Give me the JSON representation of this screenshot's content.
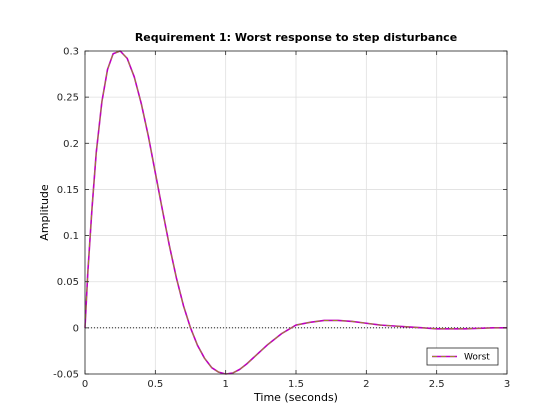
{
  "chart_data": {
    "type": "line",
    "title": "Requirement 1: Worst response to step disturbance",
    "xlabel": "Time (seconds)",
    "ylabel": "Amplitude",
    "xlim": [
      0,
      3
    ],
    "ylim": [
      -0.05,
      0.3
    ],
    "xticks": [
      0,
      0.5,
      1,
      1.5,
      2,
      2.5,
      3
    ],
    "xtick_labels": [
      "0",
      "0.5",
      "1",
      "1.5",
      "2",
      "2.5",
      "3"
    ],
    "yticks": [
      -0.05,
      0,
      0.05,
      0.1,
      0.15,
      0.2,
      0.25,
      0.3
    ],
    "ytick_labels": [
      "-0.05",
      "0",
      "0.05",
      "0.1",
      "0.15",
      "0.2",
      "0.25",
      "0.3"
    ],
    "grid": true,
    "legend": {
      "location": "bottom-right",
      "entries": [
        "Worst"
      ]
    },
    "reference_line": {
      "y": 0,
      "style": "dotted",
      "color": "#000000"
    },
    "series": [
      {
        "name": "Worst",
        "color": "#bf00bf",
        "dash_color": "#9a8a2a",
        "style": "dashed",
        "x": [
          0,
          0.02,
          0.05,
          0.08,
          0.12,
          0.16,
          0.2,
          0.25,
          0.3,
          0.35,
          0.4,
          0.45,
          0.5,
          0.55,
          0.6,
          0.65,
          0.7,
          0.75,
          0.8,
          0.85,
          0.9,
          0.95,
          1.0,
          1.05,
          1.1,
          1.15,
          1.2,
          1.3,
          1.4,
          1.5,
          1.6,
          1.7,
          1.8,
          1.9,
          2.0,
          2.1,
          2.2,
          2.3,
          2.4,
          2.5,
          2.6,
          2.7,
          2.8,
          2.9,
          3.0
        ],
        "y": [
          0,
          0.06,
          0.13,
          0.19,
          0.245,
          0.28,
          0.297,
          0.3,
          0.292,
          0.272,
          0.243,
          0.208,
          0.168,
          0.128,
          0.089,
          0.054,
          0.024,
          0.0,
          -0.019,
          -0.033,
          -0.043,
          -0.048,
          -0.05,
          -0.049,
          -0.045,
          -0.039,
          -0.032,
          -0.018,
          -0.006,
          0.003,
          0.006,
          0.008,
          0.008,
          0.007,
          0.005,
          0.003,
          0.002,
          0.001,
          0.0,
          -0.001,
          -0.001,
          -0.001,
          -0.0005,
          0.0,
          0.0
        ]
      }
    ]
  }
}
